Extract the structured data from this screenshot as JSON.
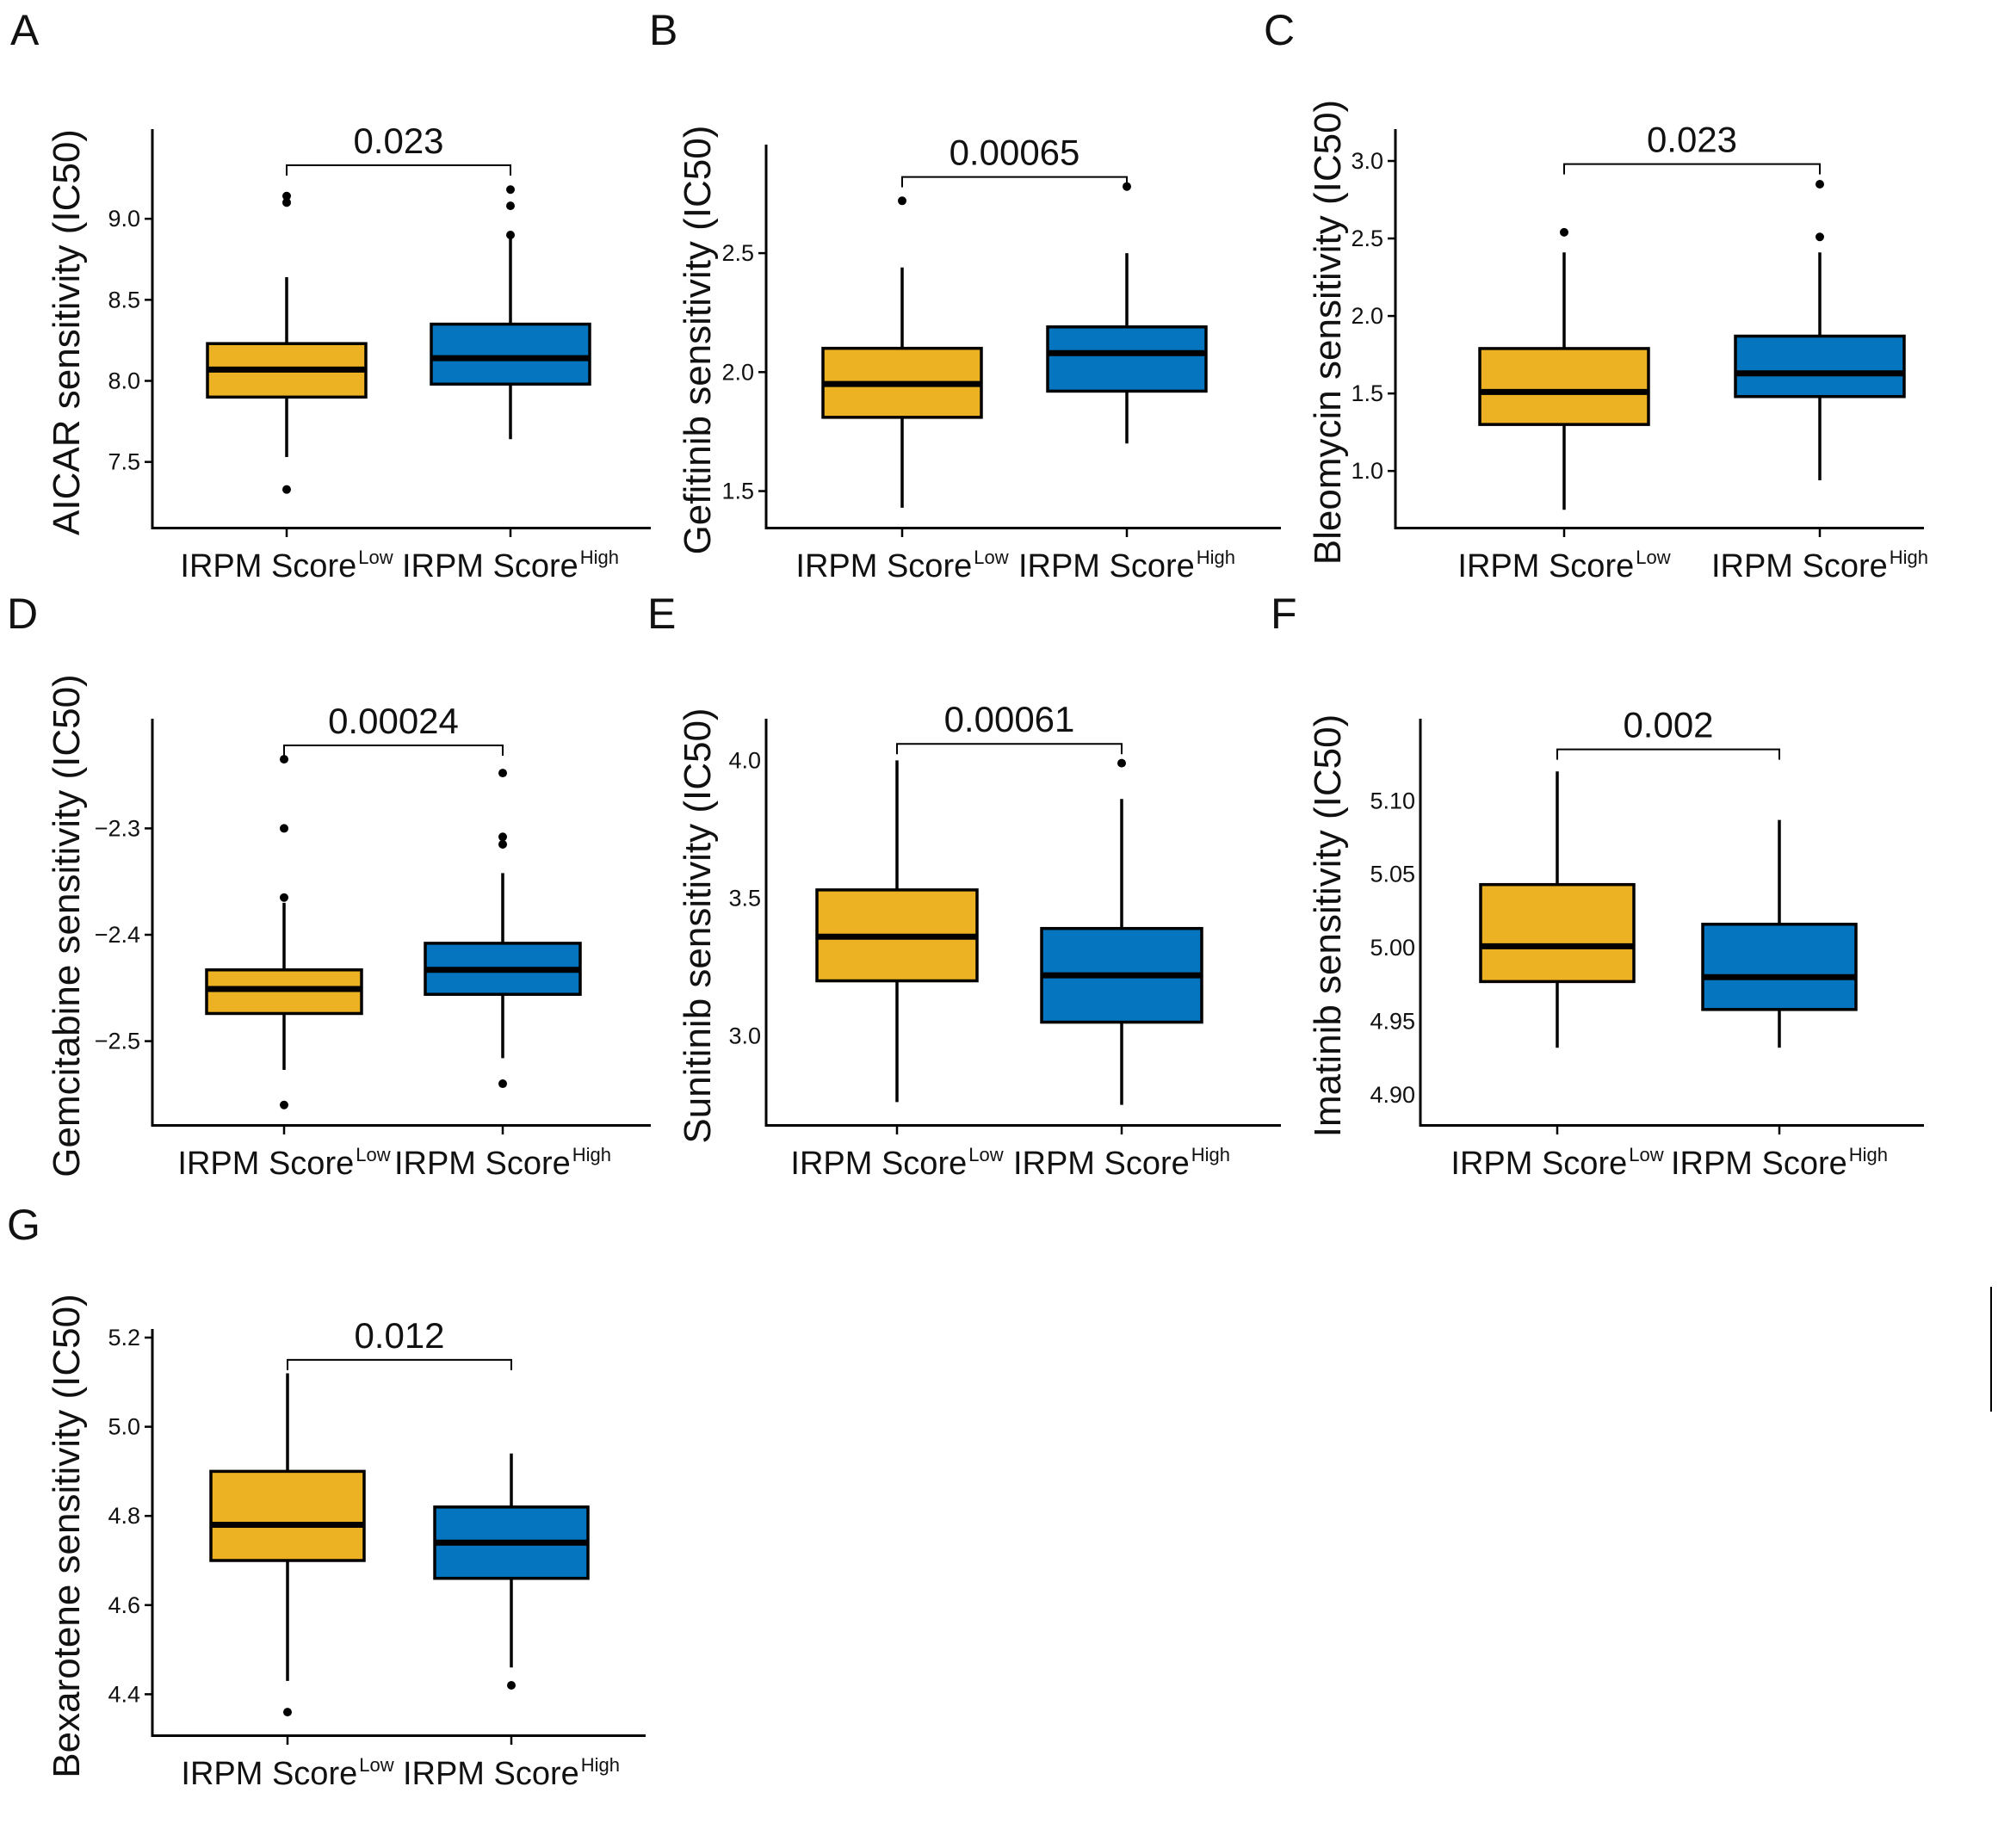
{
  "figure": {
    "colors": {
      "low": "#EDB224",
      "high": "#0475BE",
      "ink": "#000000"
    }
  },
  "chart_data": [
    {
      "panel": "A",
      "type": "box",
      "ylabel": "AICAR sensitivity (IC50)",
      "categories": [
        {
          "main": "IRPM Score",
          "sup": "Low"
        },
        {
          "main": "IRPM Score",
          "sup": "High"
        }
      ],
      "yticks": [
        7.5,
        8.0,
        8.5,
        9.0
      ],
      "ytick_labels": [
        "7.5",
        "8.0",
        "8.5",
        "9.0"
      ],
      "ylim": [
        7.1,
        9.5
      ],
      "p_value": "0.023",
      "bracket_y": 9.33,
      "boxes": [
        {
          "group": "Low",
          "lower_whisker": 7.53,
          "q1": 7.9,
          "median": 8.07,
          "q3": 8.23,
          "upper_whisker": 8.64,
          "outliers": [
            7.33,
            9.1,
            9.14
          ]
        },
        {
          "group": "High",
          "lower_whisker": 7.64,
          "q1": 7.98,
          "median": 8.14,
          "q3": 8.35,
          "upper_whisker": 8.89,
          "outliers": [
            8.9,
            9.08,
            9.18
          ]
        }
      ]
    },
    {
      "panel": "B",
      "type": "box",
      "ylabel": "Gefitinib sensitivity (IC50)",
      "categories": [
        {
          "main": "IRPM Score",
          "sup": "Low"
        },
        {
          "main": "IRPM Score",
          "sup": "High"
        }
      ],
      "yticks": [
        1.5,
        2.0,
        2.5
      ],
      "ytick_labels": [
        "1.5",
        "2.0",
        "2.5"
      ],
      "ylim": [
        1.35,
        2.92
      ],
      "p_value": "0.00065",
      "bracket_y": 2.82,
      "boxes": [
        {
          "group": "Low",
          "lower_whisker": 1.43,
          "q1": 1.81,
          "median": 1.95,
          "q3": 2.1,
          "upper_whisker": 2.44,
          "outliers": [
            2.72
          ]
        },
        {
          "group": "High",
          "lower_whisker": 1.7,
          "q1": 1.92,
          "median": 2.08,
          "q3": 2.19,
          "upper_whisker": 2.5,
          "outliers": [
            2.78
          ]
        }
      ]
    },
    {
      "panel": "C",
      "type": "box",
      "ylabel": "Bleomycin sensitivity (IC50)",
      "categories": [
        {
          "main": "IRPM Score",
          "sup": "Low"
        },
        {
          "main": "IRPM Score",
          "sup": "High"
        }
      ],
      "yticks": [
        1.0,
        1.5,
        2.0,
        2.5,
        3.0
      ],
      "ytick_labels": [
        "1.0",
        "1.5",
        "2.0",
        "2.5",
        "3.0"
      ],
      "ylim": [
        0.64,
        3.15
      ],
      "p_value": "0.023",
      "bracket_y": 2.98,
      "boxes": [
        {
          "group": "Low",
          "lower_whisker": 0.75,
          "q1": 1.3,
          "median": 1.51,
          "q3": 1.79,
          "upper_whisker": 2.41,
          "outliers": [
            2.54
          ]
        },
        {
          "group": "High",
          "lower_whisker": 0.94,
          "q1": 1.48,
          "median": 1.63,
          "q3": 1.87,
          "upper_whisker": 2.41,
          "outliers": [
            2.51,
            2.85
          ]
        }
      ]
    },
    {
      "panel": "D",
      "type": "box",
      "ylabel": "Gemcitabine sensitivity (IC50)",
      "categories": [
        {
          "main": "IRPM Score",
          "sup": "Low"
        },
        {
          "main": "IRPM Score",
          "sup": "High"
        }
      ],
      "yticks": [
        -2.5,
        -2.4,
        -2.3
      ],
      "ytick_labels": [
        "−2.5",
        "−2.4",
        "−2.3"
      ],
      "ylim": [
        -2.578,
        -2.205
      ],
      "p_value": "0.00024",
      "bracket_y": -2.222,
      "boxes": [
        {
          "group": "Low",
          "lower_whisker": -2.527,
          "q1": -2.474,
          "median": -2.451,
          "q3": -2.433,
          "upper_whisker": -2.37,
          "outliers": [
            -2.56,
            -2.365,
            -2.3,
            -2.235
          ]
        },
        {
          "group": "High",
          "lower_whisker": -2.516,
          "q1": -2.456,
          "median": -2.433,
          "q3": -2.408,
          "upper_whisker": -2.342,
          "outliers": [
            -2.54,
            -2.315,
            -2.308,
            -2.248
          ]
        }
      ]
    },
    {
      "panel": "E",
      "type": "box",
      "ylabel": "Sunitinib sensitivity (IC50)",
      "categories": [
        {
          "main": "IRPM Score",
          "sup": "Low"
        },
        {
          "main": "IRPM Score",
          "sup": "High"
        }
      ],
      "yticks": [
        3.0,
        3.5,
        4.0
      ],
      "ytick_labels": [
        "3.0",
        "3.5",
        "4.0"
      ],
      "ylim": [
        2.68,
        4.12
      ],
      "p_value": "0.00061",
      "bracket_y": 4.06,
      "boxes": [
        {
          "group": "Low",
          "lower_whisker": 2.76,
          "q1": 3.2,
          "median": 3.36,
          "q3": 3.53,
          "upper_whisker": 4.0,
          "outliers": []
        },
        {
          "group": "High",
          "lower_whisker": 2.75,
          "q1": 3.05,
          "median": 3.22,
          "q3": 3.39,
          "upper_whisker": 3.86,
          "outliers": [
            3.99
          ]
        }
      ]
    },
    {
      "panel": "F",
      "type": "box",
      "ylabel": "Imatinib sensitivity (IC50)",
      "categories": [
        {
          "main": "IRPM Score",
          "sup": "Low"
        },
        {
          "main": "IRPM Score",
          "sup": "High"
        }
      ],
      "yticks": [
        4.9,
        4.95,
        5.0,
        5.05,
        5.1
      ],
      "ytick_labels": [
        "4.90",
        "4.95",
        "5.00",
        "5.05",
        "5.10"
      ],
      "ylim": [
        4.88,
        5.15
      ],
      "p_value": "0.002",
      "bracket_y": 5.135,
      "boxes": [
        {
          "group": "Low",
          "lower_whisker": 4.932,
          "q1": 4.977,
          "median": 5.001,
          "q3": 5.043,
          "upper_whisker": 5.12,
          "outliers": []
        },
        {
          "group": "High",
          "lower_whisker": 4.932,
          "q1": 4.958,
          "median": 4.98,
          "q3": 5.016,
          "upper_whisker": 5.087,
          "outliers": []
        }
      ]
    },
    {
      "panel": "G",
      "type": "box",
      "ylabel": "Bexarotene sensitivity (IC50)",
      "categories": [
        {
          "main": "IRPM Score",
          "sup": "Low"
        },
        {
          "main": "IRPM Score",
          "sup": "High"
        }
      ],
      "yticks": [
        4.4,
        4.6,
        4.8,
        5.0,
        5.2
      ],
      "ytick_labels": [
        "4.4",
        "4.6",
        "4.8",
        "5.0",
        "5.2"
      ],
      "ylim": [
        4.31,
        5.2
      ],
      "p_value": "0.012",
      "bracket_y": 5.15,
      "boxes": [
        {
          "group": "Low",
          "lower_whisker": 4.43,
          "q1": 4.7,
          "median": 4.78,
          "q3": 4.9,
          "upper_whisker": 5.12,
          "outliers": [
            4.36
          ]
        },
        {
          "group": "High",
          "lower_whisker": 4.46,
          "q1": 4.66,
          "median": 4.74,
          "q3": 4.82,
          "upper_whisker": 4.94,
          "outliers": [
            4.42
          ]
        }
      ]
    }
  ]
}
